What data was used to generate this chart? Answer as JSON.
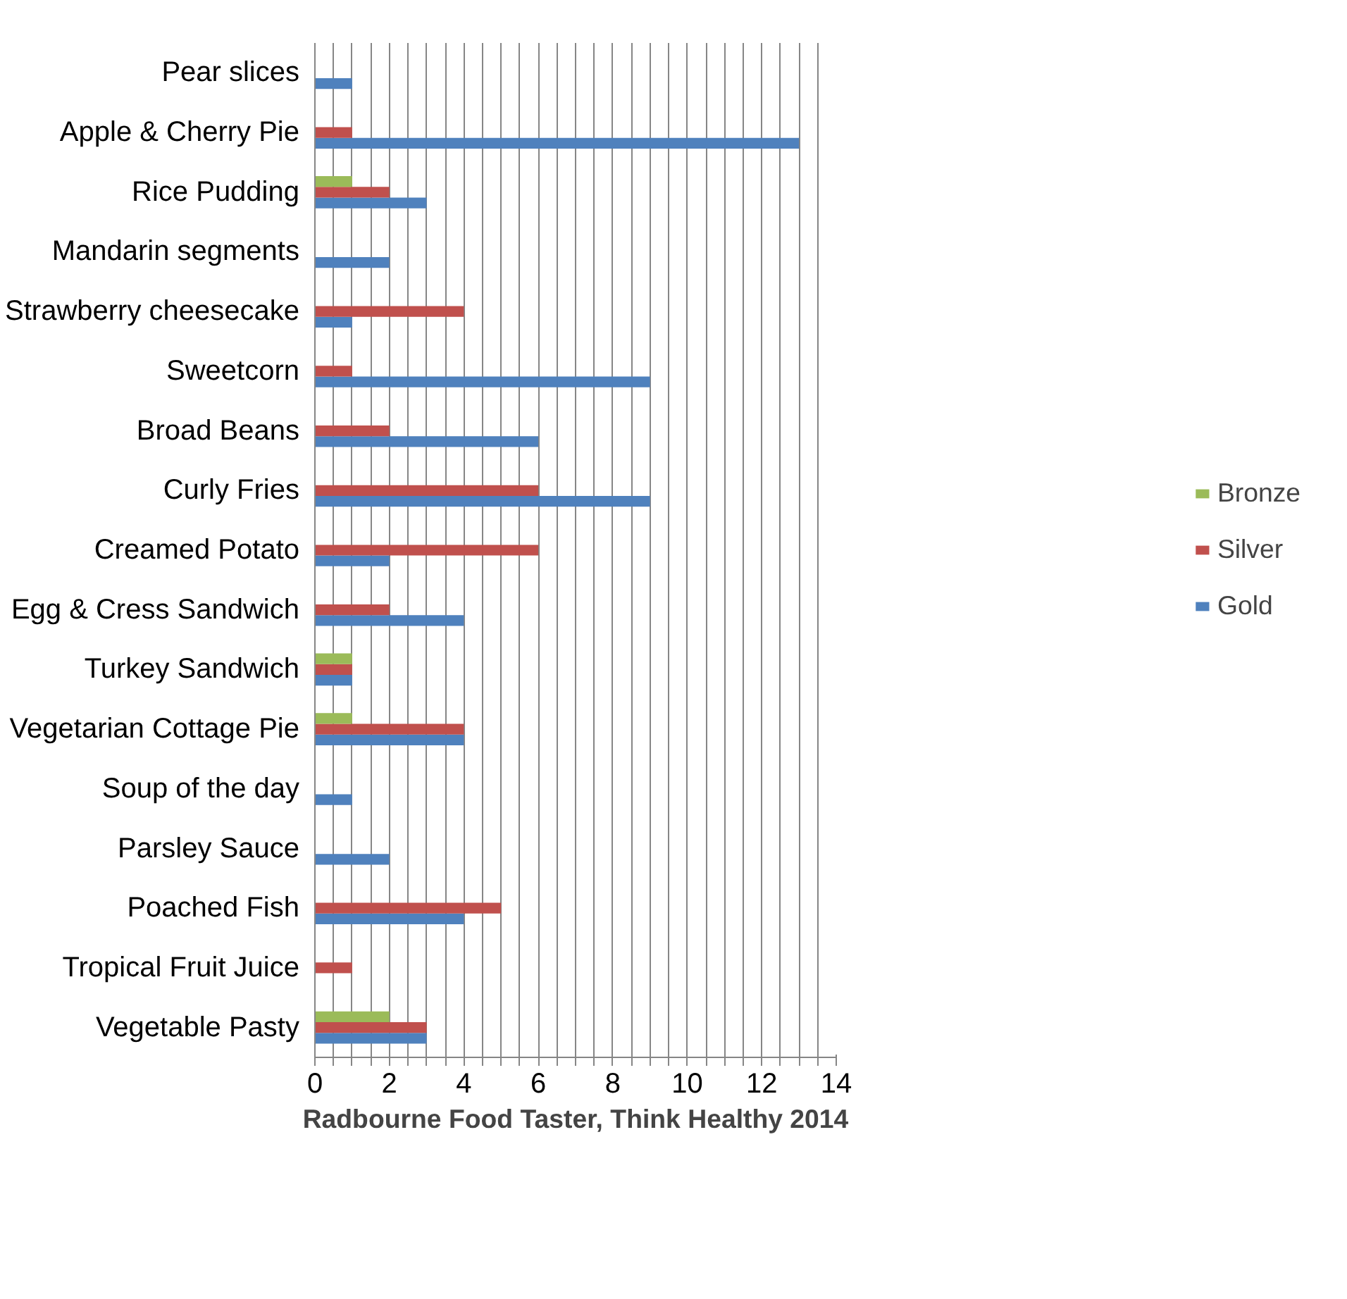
{
  "chart_data": {
    "type": "bar",
    "orientation": "horizontal",
    "xlabel": "Radbourne Food Taster, Think Healthy 2014",
    "categories": [
      "Pear slices",
      "Apple & Cherry Pie",
      "Rice Pudding",
      "Mandarin segments",
      "Strawberry cheesecake",
      "Sweetcorn",
      "Broad Beans",
      "Curly Fries",
      "Creamed Potato",
      "Egg & Cress Sandwich",
      "Turkey Sandwich",
      "Vegetarian Cottage Pie",
      "Soup of the day",
      "Parsley Sauce",
      "Poached Fish",
      "Tropical Fruit Juice",
      "Vegetable Pasty"
    ],
    "series": [
      {
        "name": "Gold",
        "color": "#4f81bd",
        "values": [
          1,
          13,
          3,
          2,
          1,
          9,
          6,
          9,
          2,
          4,
          1,
          4,
          1,
          2,
          4,
          null,
          3
        ]
      },
      {
        "name": "Silver",
        "color": "#c0504d",
        "values": [
          null,
          1,
          2,
          null,
          4,
          1,
          2,
          6,
          6,
          2,
          1,
          4,
          null,
          null,
          5,
          1,
          3
        ]
      },
      {
        "name": "Bronze",
        "color": "#9bbb59",
        "values": [
          null,
          null,
          1,
          null,
          null,
          null,
          null,
          null,
          null,
          null,
          1,
          1,
          null,
          null,
          null,
          null,
          2
        ]
      }
    ],
    "xlim": [
      0,
      14
    ],
    "xticks": [
      0,
      {
        "value": 0.5,
        "label": null
      },
      {
        "value": 1,
        "label": null
      },
      {
        "value": 1.5,
        "label": null
      },
      2,
      {
        "value": 2.5,
        "label": null
      },
      {
        "value": 3,
        "label": null
      },
      {
        "value": 3.5,
        "label": null
      },
      4,
      {
        "value": 4.5,
        "label": null
      },
      {
        "value": 5,
        "label": null
      },
      {
        "value": 5.5,
        "label": null
      },
      6,
      {
        "value": 6.5,
        "label": null
      },
      {
        "value": 7,
        "label": null
      },
      {
        "value": 7.5,
        "label": null
      },
      8,
      {
        "value": 8.5,
        "label": null
      },
      {
        "value": 9,
        "label": null
      },
      {
        "value": 9.5,
        "label": null
      },
      10,
      {
        "value": 10.5,
        "label": null
      },
      {
        "value": 11,
        "label": null
      },
      {
        "value": 11.5,
        "label": null
      },
      12,
      {
        "value": 12.5,
        "label": null
      },
      {
        "value": 13,
        "label": null
      },
      {
        "value": 13.5,
        "label": null
      },
      14
    ],
    "grid": "x",
    "legend": "right"
  }
}
